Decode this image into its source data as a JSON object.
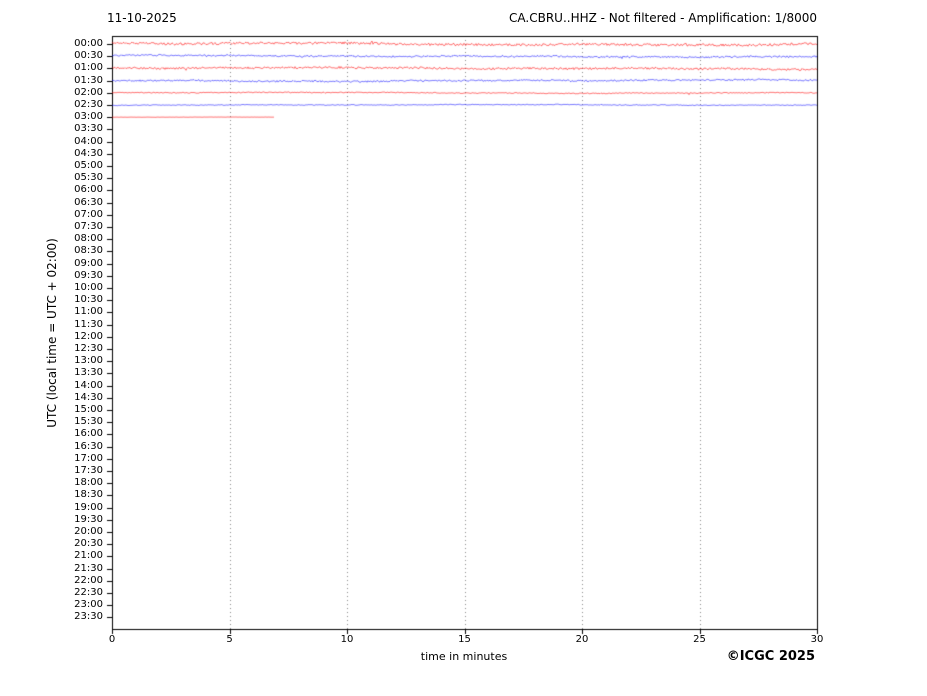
{
  "chart_data": {
    "type": "line",
    "chart_kind": "helicorder-seismogram",
    "title_left": "11-10-2025",
    "title_right": "CA.CBRU..HHZ - Not filtered - Amplification: 1/8000",
    "xlabel": "time in minutes",
    "ylabel": "UTC (local time = UTC + 02:00)",
    "copyright": "©ICGC 2025",
    "xlim": [
      0,
      30
    ],
    "x_ticks": [
      0,
      5,
      10,
      15,
      20,
      25,
      30
    ],
    "grid_minutes": [
      5,
      10,
      15,
      20,
      25
    ],
    "grid_on": true,
    "legend_position": "none",
    "y_tick_labels": [
      "00:00",
      "00:30",
      "01:00",
      "01:30",
      "02:00",
      "02:30",
      "03:00",
      "03:30",
      "04:00",
      "04:30",
      "05:00",
      "05:30",
      "06:00",
      "06:30",
      "07:00",
      "07:30",
      "08:00",
      "08:30",
      "09:00",
      "09:30",
      "10:00",
      "10:30",
      "11:00",
      "11:30",
      "12:00",
      "12:30",
      "13:00",
      "13:30",
      "14:00",
      "14:30",
      "15:00",
      "15:30",
      "16:00",
      "16:30",
      "17:00",
      "17:30",
      "18:00",
      "18:30",
      "19:00",
      "19:30",
      "20:00",
      "20:30",
      "21:00",
      "21:30",
      "22:00",
      "22:30",
      "23:00",
      "23:30"
    ],
    "trace_colors": {
      "red": "#ff0000",
      "blue": "#0000ff"
    },
    "axis_color": "#000000",
    "grid_color": "#888888",
    "background_color": "#ffffff",
    "traces": [
      {
        "utc": "00:00",
        "color": "red",
        "start_min": 0,
        "end_min": 30,
        "amplitude": 1.4,
        "seed": 11
      },
      {
        "utc": "00:30",
        "color": "blue",
        "start_min": 0,
        "end_min": 30,
        "amplitude": 1.0,
        "seed": 22
      },
      {
        "utc": "01:00",
        "color": "red",
        "start_min": 0,
        "end_min": 30,
        "amplitude": 1.2,
        "seed": 33
      },
      {
        "utc": "01:30",
        "color": "blue",
        "start_min": 0,
        "end_min": 30,
        "amplitude": 1.0,
        "seed": 44
      },
      {
        "utc": "02:00",
        "color": "red",
        "start_min": 0,
        "end_min": 30,
        "amplitude": 0.6,
        "seed": 55
      },
      {
        "utc": "02:30",
        "color": "blue",
        "start_min": 0,
        "end_min": 30,
        "amplitude": 0.5,
        "seed": 66
      },
      {
        "utc": "03:00",
        "color": "red",
        "start_min": 0,
        "end_min": 6.9,
        "amplitude": 0.15,
        "seed": 77
      }
    ]
  }
}
